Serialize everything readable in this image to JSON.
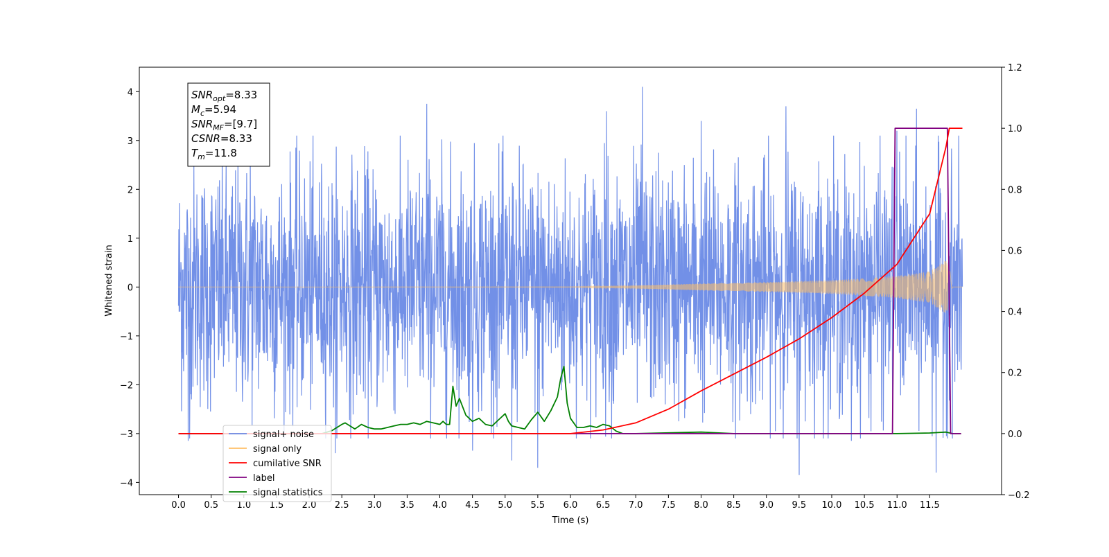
{
  "chart_data": {
    "type": "line",
    "xlabel": "Time (s)",
    "ylabel": "Whitened strain",
    "xlim": [
      -0.6,
      12.6
    ],
    "ylim": [
      -4.25,
      4.5
    ],
    "ylim_right": [
      -0.2,
      1.2
    ],
    "x_ticks": [
      "0.0",
      "0.5",
      "1.0",
      "1.5",
      "2.0",
      "2.5",
      "3.0",
      "3.5",
      "4.0",
      "4.5",
      "5.0",
      "5.5",
      "6.0",
      "6.5",
      "7.0",
      "7.5",
      "8.0",
      "8.5",
      "9.0",
      "9.5",
      "10.0",
      "10.5",
      "11.0",
      "11.5"
    ],
    "y_ticks": [
      "4",
      "3",
      "2",
      "1",
      "0",
      "−1",
      "−2",
      "−3",
      "−4"
    ],
    "y2_ticks": [
      "1.2",
      "1.0",
      "0.8",
      "0.6",
      "0.4",
      "0.2",
      "0.0",
      "−0.2"
    ],
    "grid": false,
    "legend_placement": "lower-left",
    "info_box": {
      "lines": [
        {
          "main": "SNR",
          "sub": "opt",
          "value": "=8.33"
        },
        {
          "main": "M",
          "sub": "c",
          "value": "=5.94"
        },
        {
          "main": "SNR",
          "sub": "MF",
          "value": "=[9.7]"
        },
        {
          "main": "CSNR",
          "sub": "",
          "value": "=8.33"
        },
        {
          "main": "T",
          "sub": "m",
          "value": "=11.8"
        }
      ]
    },
    "legend": [
      {
        "label": "signal+ noise",
        "color": "#6a8ae6"
      },
      {
        "label": "signal only",
        "color": "#ffbf66"
      },
      {
        "label": "cumilative SNR",
        "color": "#ff0000"
      },
      {
        "label": "label",
        "color": "#800080"
      },
      {
        "label": "signal statistics",
        "color": "#008000"
      }
    ],
    "series": [
      {
        "name": "signal+ noise",
        "axis": "left",
        "color": "#6a8ae6",
        "x_start": 0.0,
        "x_end": 12.0,
        "amplitude_typical": 1.3,
        "notable_peaks": [
          [
            1.1,
            3.0
          ],
          [
            3.8,
            3.75
          ],
          [
            6.55,
            3.6
          ],
          [
            7.1,
            4.1
          ],
          [
            8.0,
            3.4
          ],
          [
            9.3,
            3.7
          ],
          [
            11.0,
            3.2
          ],
          [
            11.3,
            3.65
          ]
        ],
        "notable_troughs": [
          [
            0.15,
            -3.15
          ],
          [
            2.4,
            -3.4
          ],
          [
            4.5,
            -3.35
          ],
          [
            5.1,
            -3.55
          ],
          [
            5.5,
            -3.7
          ],
          [
            9.5,
            -3.85
          ],
          [
            10.3,
            -3.15
          ],
          [
            11.6,
            -3.8
          ]
        ]
      },
      {
        "name": "signal only",
        "axis": "left",
        "color": "#ffbf66",
        "envelope": [
          [
            0.0,
            0.0
          ],
          [
            6.0,
            0.005
          ],
          [
            7.0,
            0.03
          ],
          [
            8.0,
            0.07
          ],
          [
            9.0,
            0.1
          ],
          [
            10.0,
            0.14
          ],
          [
            10.5,
            0.18
          ],
          [
            11.0,
            0.23
          ],
          [
            11.5,
            0.32
          ],
          [
            11.75,
            0.55
          ],
          [
            11.8,
            0.4
          ],
          [
            11.85,
            0.0
          ],
          [
            12.0,
            0.0
          ]
        ]
      },
      {
        "name": "cumilative SNR",
        "axis": "right",
        "color": "#ff0000",
        "x": [
          0.0,
          6.0,
          6.5,
          7.0,
          7.5,
          8.0,
          8.5,
          9.0,
          9.5,
          10.0,
          10.5,
          11.0,
          11.5,
          11.75,
          11.8,
          11.85,
          12.0
        ],
        "y": [
          0.0,
          0.0,
          0.012,
          0.035,
          0.08,
          0.14,
          0.195,
          0.25,
          0.31,
          0.38,
          0.46,
          0.555,
          0.72,
          0.94,
          1.0,
          1.0,
          1.0
        ]
      },
      {
        "name": "label",
        "axis": "right",
        "color": "#800080",
        "x": [
          0.0,
          10.93,
          10.97,
          11.77,
          11.82,
          11.98
        ],
        "y": [
          0.0,
          0.0,
          1.0,
          1.0,
          0.0,
          0.0
        ]
      },
      {
        "name": "signal statistics",
        "axis": "right",
        "color": "#008000",
        "x": [
          0.0,
          2.2,
          2.35,
          2.5,
          2.55,
          2.7,
          2.8,
          2.9,
          3.0,
          3.1,
          3.2,
          3.3,
          3.4,
          3.5,
          3.6,
          3.7,
          3.8,
          3.9,
          4.0,
          4.05,
          4.1,
          4.15,
          4.2,
          4.25,
          4.3,
          4.4,
          4.5,
          4.6,
          4.7,
          4.8,
          4.9,
          5.0,
          5.05,
          5.1,
          5.2,
          5.3,
          5.4,
          5.5,
          5.6,
          5.7,
          5.8,
          5.85,
          5.9,
          5.95,
          6.0,
          6.1,
          6.2,
          6.3,
          6.4,
          6.5,
          6.6,
          6.7,
          6.8,
          7.0,
          8.0,
          8.5,
          9.0,
          10.0,
          11.0,
          11.5,
          11.75,
          11.85,
          11.98
        ],
        "y": [
          0.0,
          0.0,
          0.01,
          0.03,
          0.035,
          0.015,
          0.03,
          0.02,
          0.015,
          0.015,
          0.02,
          0.025,
          0.03,
          0.03,
          0.035,
          0.03,
          0.04,
          0.035,
          0.03,
          0.04,
          0.03,
          0.03,
          0.155,
          0.09,
          0.115,
          0.06,
          0.04,
          0.05,
          0.03,
          0.025,
          0.045,
          0.065,
          0.04,
          0.025,
          0.02,
          0.015,
          0.045,
          0.07,
          0.04,
          0.075,
          0.12,
          0.18,
          0.22,
          0.1,
          0.05,
          0.02,
          0.02,
          0.025,
          0.02,
          0.03,
          0.025,
          0.008,
          0.0,
          0.0,
          0.005,
          0.0,
          0.0,
          0.0,
          0.0,
          0.002,
          0.005,
          0.0,
          0.0
        ]
      }
    ]
  }
}
